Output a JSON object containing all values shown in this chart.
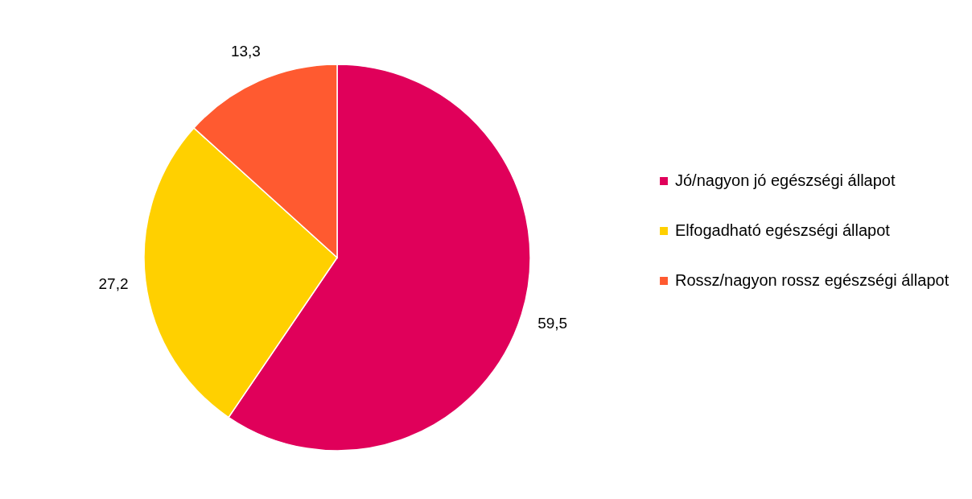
{
  "chart_data": {
    "type": "pie",
    "categories": [
      "Jó/nagyon jó egészségi állapot",
      "Elfogadható egészségi állapot",
      "Rossz/nagyon rossz egészségi állapot"
    ],
    "values": [
      59.5,
      27.2,
      13.3
    ],
    "colors": [
      "#e0005a",
      "#ffd000",
      "#ff5a30"
    ],
    "value_labels": [
      "59,5",
      "27,2",
      "13,3"
    ],
    "legend": "right"
  }
}
